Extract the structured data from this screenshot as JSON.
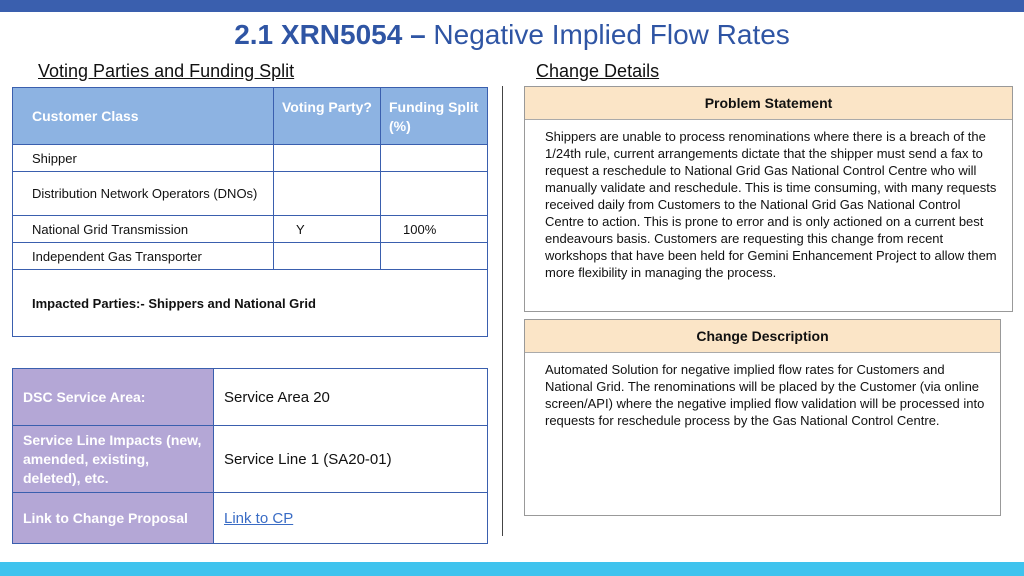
{
  "header": {
    "title_bold": "2.1 XRN5054 –",
    "title_rest": " Negative Implied Flow Rates"
  },
  "voting": {
    "heading": "Voting Parties and Funding Split",
    "columns": [
      "Customer Class",
      "Voting Party?",
      "Funding Split (%)"
    ],
    "rows": [
      {
        "class": "Shipper",
        "voting": "",
        "funding": ""
      },
      {
        "class": "Distribution Network Operators (DNOs)",
        "voting": "",
        "funding": ""
      },
      {
        "class": "National Grid Transmission",
        "voting": "Y",
        "funding": "100%"
      },
      {
        "class": "Independent Gas Transporter",
        "voting": "",
        "funding": ""
      }
    ],
    "impacted": "Impacted Parties:- Shippers and National Grid"
  },
  "dsc": {
    "service_area_label": "DSC Service Area:",
    "service_area_value": "Service Area 20",
    "service_line_label": "Service Line Impacts (new, amended, existing, deleted), etc.",
    "service_line_value": "Service Line 1 (SA20-01)",
    "link_label": "Link to Change Proposal",
    "link_value": "Link to CP"
  },
  "change_details": {
    "heading": "Change Details",
    "problem_title": "Problem Statement",
    "problem_text": "Shippers are unable to process renominations where there is a breach of the 1/24th rule, current arrangements dictate that the shipper must send a fax to request a reschedule to National Grid Gas National Control Centre who will manually validate and reschedule. This is time consuming, with many requests received daily from Customers to the National Grid Gas National Control Centre to action. This is prone to error and is only actioned on a current best endeavours basis. Customers are requesting this change from recent workshops that have been held for Gemini Enhancement Project to allow them more flexibility in managing the process.",
    "description_title": "Change Description",
    "description_text": "Automated Solution for negative implied flow rates for Customers and National Grid. The renominations will be placed by the Customer (via online screen/API) where the negative implied flow validation will be processed into requests for reschedule process by the Gas National Control Centre."
  },
  "colors": {
    "title_blue": "#2f55a4",
    "table_header_blue": "#8db3e2",
    "dsc_label_purple": "#b4a7d6",
    "box_header_peach": "#fbe5c7",
    "top_bar": "#3a5fae",
    "bottom_bar": "#3fc3ee"
  }
}
